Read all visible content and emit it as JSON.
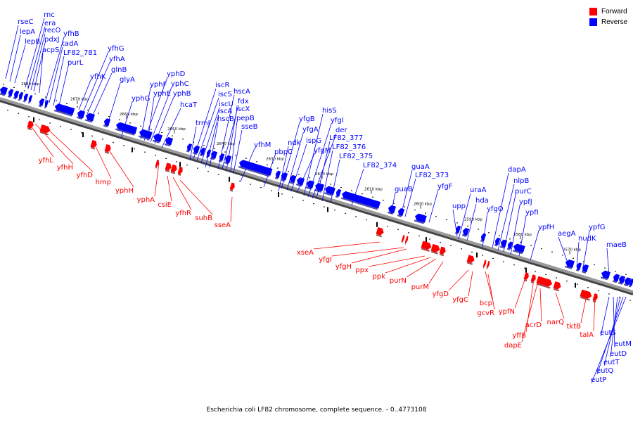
{
  "caption": "Escherichia coli LF82 chromosome, complete sequence. - 0..4773108",
  "legend": [
    {
      "label": "Forward",
      "color": "#ff0000"
    },
    {
      "label": "Reverse",
      "color": "#0000ff"
    }
  ],
  "colors": {
    "forward": "#ff0000",
    "reverse": "#0000ff",
    "backbone": "#7f7f7f"
  },
  "ticks": [
    "2680 kbp",
    "2670 kbp",
    "2660 kbp",
    "2650 kbp",
    "2640 kbp",
    "2630 kbp",
    "2620 kbp",
    "2610 kbp",
    "2600 kbp",
    "2590 kbp",
    "2580 kbp",
    "2570 kbp"
  ],
  "reverse_genes": [
    "rseC",
    "lepA",
    "lepB",
    "rnc",
    "era",
    "recO",
    "pdxJ",
    "acpS",
    "yfhB",
    "tadA",
    "LF82_781",
    "purL",
    "yfhK",
    "yfhG",
    "yfhA",
    "glnB",
    "glyA",
    "yphG",
    "yphF",
    "yphE",
    "yphD",
    "yphC",
    "yphB",
    "hcaT",
    "trmJ",
    "iscR",
    "iscS",
    "iscU",
    "iscA",
    "hscB",
    "hscA",
    "fdx",
    "iscX",
    "pepB",
    "sseB",
    "yfhM",
    "pbpC",
    "ndk",
    "yfgB",
    "yfgA",
    "ispG",
    "yfgM",
    "hisS",
    "yfgI",
    "der",
    "LF82_377",
    "LF82_376",
    "LF82_375",
    "LF82_374",
    "guaB",
    "guaA",
    "LF82_373",
    "yfgF",
    "upp",
    "uraA",
    "hda",
    "yfgO",
    "dapA",
    "nlpB",
    "purC",
    "ypfJ",
    "ypfI",
    "ypfH",
    "aegA",
    "nudK",
    "ypfG",
    "maeB",
    "eutS",
    "eutM",
    "eutD",
    "eutT",
    "eutQ",
    "eutP"
  ],
  "forward_genes": [
    "yfhL",
    "yfhH",
    "yfhD",
    "hmp",
    "yphH",
    "yphA",
    "csiE",
    "yfhR",
    "suhB",
    "sseA",
    "xseA",
    "yfgI",
    "yfgH",
    "ppx",
    "ppk",
    "purN",
    "purM",
    "yfgD",
    "yfgC",
    "bcp",
    "gcvR",
    "ypfN",
    "yffB",
    "dapE",
    "acrD",
    "narQ",
    "tktB",
    "talA"
  ]
}
